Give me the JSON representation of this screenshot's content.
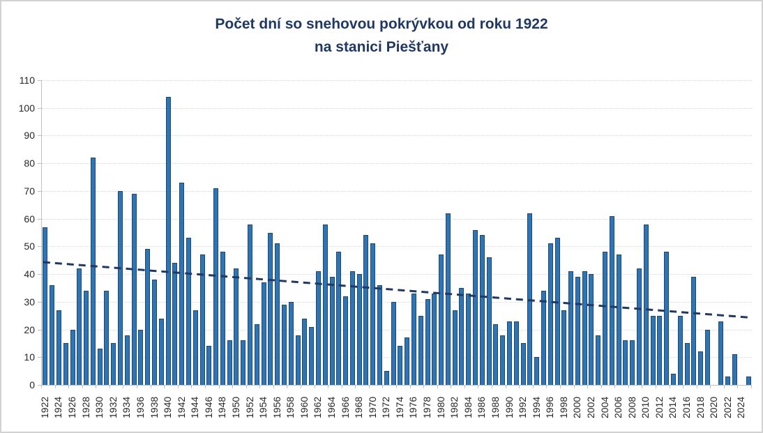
{
  "chart": {
    "title_line1": "Počet dní so snehovou pokrývkou od roku 1922",
    "title_line2": "na stanici Piešťany"
  },
  "chart_data": {
    "type": "bar",
    "title": "Počet dní so snehovou pokrývkou od roku 1922 na stanici Piešťany",
    "title_lines": [
      "Počet dní so snehovou pokrývkou od roku 1922",
      "na stanici Piešťany"
    ],
    "xlabel": "",
    "ylabel": "",
    "ylim": [
      0,
      110
    ],
    "y_ticks": [
      0,
      10,
      20,
      30,
      40,
      50,
      60,
      70,
      80,
      90,
      100,
      110
    ],
    "x_tick_labels": [
      "1922",
      "1924",
      "1926",
      "1928",
      "1930",
      "1932",
      "1934",
      "1936",
      "1938",
      "1940",
      "1942",
      "1944",
      "1946",
      "1948",
      "1950",
      "1952",
      "1954",
      "1956",
      "1958",
      "1960",
      "1962",
      "1964",
      "1966",
      "1968",
      "1970",
      "1972",
      "1974",
      "1976",
      "1978",
      "1980",
      "1982",
      "1984",
      "1986",
      "1988",
      "1990",
      "1992",
      "1994",
      "1996",
      "1998",
      "2000",
      "2002",
      "2004",
      "2006",
      "2008",
      "2010",
      "2012",
      "2014",
      "2016",
      "2018",
      "2020",
      "2022",
      "2024"
    ],
    "x_tick_label_interval": 2,
    "grid": "horizontal-dotted",
    "legend": "none",
    "categories": [
      1922,
      1923,
      1924,
      1925,
      1926,
      1927,
      1928,
      1929,
      1930,
      1931,
      1932,
      1933,
      1934,
      1935,
      1936,
      1937,
      1938,
      1939,
      1940,
      1941,
      1942,
      1943,
      1944,
      1945,
      1946,
      1947,
      1948,
      1949,
      1950,
      1951,
      1952,
      1953,
      1954,
      1955,
      1956,
      1957,
      1958,
      1959,
      1960,
      1961,
      1962,
      1963,
      1964,
      1965,
      1966,
      1967,
      1968,
      1969,
      1970,
      1971,
      1972,
      1973,
      1974,
      1975,
      1976,
      1977,
      1978,
      1979,
      1980,
      1981,
      1982,
      1983,
      1984,
      1985,
      1986,
      1987,
      1988,
      1989,
      1990,
      1991,
      1992,
      1993,
      1994,
      1995,
      1996,
      1997,
      1998,
      1999,
      2000,
      2001,
      2002,
      2003,
      2004,
      2005,
      2006,
      2007,
      2008,
      2009,
      2010,
      2011,
      2012,
      2013,
      2014,
      2015,
      2016,
      2017,
      2018,
      2019,
      2020,
      2021,
      2022,
      2023,
      2024,
      2025
    ],
    "values": [
      57,
      36,
      27,
      15,
      20,
      42,
      34,
      82,
      13,
      34,
      15,
      70,
      18,
      69,
      20,
      49,
      38,
      24,
      104,
      44,
      73,
      53,
      27,
      47,
      14,
      71,
      48,
      16,
      42,
      16,
      58,
      22,
      37,
      55,
      51,
      29,
      30,
      18,
      24,
      21,
      41,
      58,
      39,
      48,
      32,
      41,
      40,
      54,
      51,
      36,
      5,
      30,
      14,
      17,
      33,
      25,
      31,
      33,
      47,
      62,
      27,
      35,
      33,
      56,
      54,
      46,
      22,
      18,
      23,
      23,
      15,
      62,
      10,
      34,
      51,
      53,
      27,
      41,
      39,
      41,
      40,
      18,
      48,
      61,
      47,
      16,
      16,
      42,
      58,
      25,
      25,
      48,
      4,
      25,
      15,
      39,
      12,
      20,
      0,
      23,
      3,
      11,
      0,
      3
    ],
    "trendline": {
      "style": "dashed",
      "start": {
        "year": 1922,
        "value": 44.3
      },
      "end": {
        "year": 2025,
        "value": 24.3
      }
    },
    "colors": {
      "bar_fill": "#2e75b6",
      "bar_border": "#1d4670",
      "trend_line": "#1f3864",
      "title_text": "#1f3864",
      "axis_text": "#262626",
      "gridline": "#d9d9d9",
      "axis_line": "#bfbfbf",
      "background": "#ffffff"
    }
  }
}
